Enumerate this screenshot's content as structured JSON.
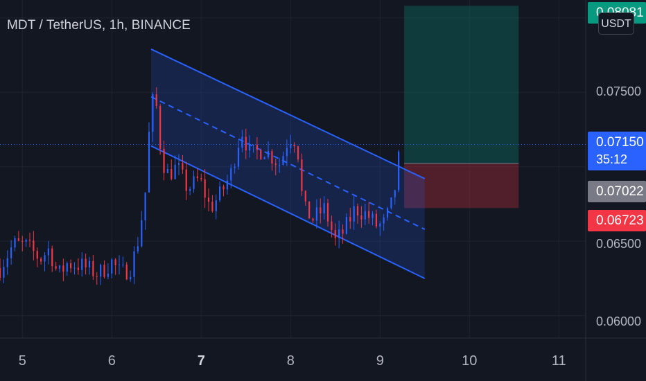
{
  "header": {
    "title": "MDT / TetherUS, 1h, BINANCE",
    "currency_button": "USDT"
  },
  "price_scale": {
    "ticks": [
      "0.07500",
      "0.06500",
      "0.06000"
    ],
    "target_badge": {
      "label": "0.08081",
      "color": "#089981"
    },
    "last_price_badge": {
      "label": "0.07150",
      "countdown": "35:12",
      "color": "#2962ff"
    },
    "entry_badge": {
      "label": "0.07022",
      "color": "#787b86"
    },
    "stop_badge": {
      "label": "0.06723",
      "color": "#f23645"
    }
  },
  "time_scale": {
    "ticks": [
      {
        "label": "5",
        "bold": false
      },
      {
        "label": "6",
        "bold": false
      },
      {
        "label": "7",
        "bold": true
      },
      {
        "label": "8",
        "bold": false
      },
      {
        "label": "9",
        "bold": false
      },
      {
        "label": "10",
        "bold": false
      },
      {
        "label": "11",
        "bold": false
      }
    ]
  },
  "colors": {
    "background": "#131722",
    "grid": "#1e222d",
    "up_candle": "#2962ff",
    "down_candle": "#f23645",
    "channel": "#2962ff",
    "profit_zone": "#089981",
    "loss_zone": "#f23645"
  },
  "chart_data": {
    "type": "candlestick",
    "title": "MDT / TetherUS, 1h, BINANCE",
    "x_axis": {
      "labels": [
        "5",
        "6",
        "7",
        "8",
        "9",
        "10",
        "11"
      ],
      "range": [
        4.75,
        11.3
      ]
    },
    "y_axis": {
      "range": [
        0.0585,
        0.0812
      ],
      "ticks": [
        0.075,
        0.065,
        0.06
      ]
    },
    "last_price": 0.0715,
    "position": {
      "side": "long",
      "entry": 0.07022,
      "stop": 0.06723,
      "target": 0.08081
    },
    "channel": {
      "upper": [
        [
          6.44,
          0.0779
        ],
        [
          9.5,
          0.0692
        ]
      ],
      "middle": [
        [
          6.44,
          0.0747
        ],
        [
          9.5,
          0.0658
        ]
      ],
      "lower": [
        [
          6.44,
          0.0714
        ],
        [
          9.5,
          0.0625
        ]
      ]
    },
    "anchors": [
      [
        4.75,
        0.0632
      ],
      [
        4.9,
        0.0648
      ],
      [
        5.05,
        0.0647
      ],
      [
        5.2,
        0.0638
      ],
      [
        5.3,
        0.0645
      ],
      [
        5.4,
        0.0627
      ],
      [
        5.5,
        0.0635
      ],
      [
        5.65,
        0.0634
      ],
      [
        5.85,
        0.0628
      ],
      [
        6.0,
        0.0636
      ],
      [
        6.1,
        0.0628
      ],
      [
        6.22,
        0.0633
      ],
      [
        6.3,
        0.0652
      ],
      [
        6.38,
        0.0685
      ],
      [
        6.44,
        0.0745
      ],
      [
        6.5,
        0.074
      ],
      [
        6.56,
        0.0705
      ],
      [
        6.63,
        0.0695
      ],
      [
        6.73,
        0.07
      ],
      [
        6.85,
        0.0685
      ],
      [
        6.98,
        0.0692
      ],
      [
        7.1,
        0.0672
      ],
      [
        7.22,
        0.0682
      ],
      [
        7.33,
        0.0695
      ],
      [
        7.45,
        0.0725
      ],
      [
        7.55,
        0.0708
      ],
      [
        7.7,
        0.0712
      ],
      [
        7.88,
        0.0702
      ],
      [
        7.98,
        0.072
      ],
      [
        8.07,
        0.0718
      ],
      [
        8.14,
        0.0672
      ],
      [
        8.25,
        0.0665
      ],
      [
        8.38,
        0.0672
      ],
      [
        8.5,
        0.065
      ],
      [
        8.6,
        0.0657
      ],
      [
        8.72,
        0.0672
      ],
      [
        8.85,
        0.0668
      ],
      [
        8.97,
        0.066
      ],
      [
        9.05,
        0.0662
      ],
      [
        9.15,
        0.0678
      ],
      [
        9.23,
        0.0715
      ]
    ]
  }
}
